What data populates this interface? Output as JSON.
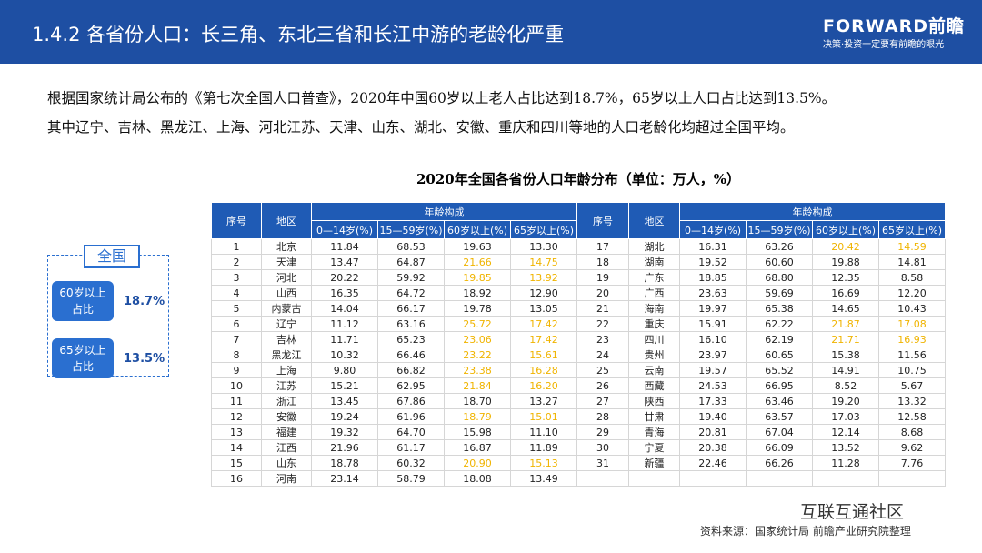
{
  "header": {
    "title": "1.4.2 各省份人口：长三角、东北三省和长江中游的老龄化严重",
    "brand": "FORWARD前瞻",
    "tagline": "决策·投资一定要有前瞻的眼光"
  },
  "intro": [
    "根据国家统计局公布的《第七次全国人口普查》，2020年中国60岁以上老人占比达到18.7%，65岁以上人口占比达到13.5%。",
    "其中辽宁、吉林、黑龙江、上海、河北江苏、天津、山东、湖北、安徽、重庆和四川等地的人口老龄化均超过全国平均。"
  ],
  "summary": {
    "title": "全国",
    "items": [
      {
        "label": "60岁以上占比",
        "value": "18.7%"
      },
      {
        "label": "65岁以上占比",
        "value": "13.5%"
      }
    ]
  },
  "table": {
    "title": "2020年全国各省份人口年龄分布（单位：万人，%）",
    "highlight_color": "#f0b400",
    "headers": {
      "no": "序号",
      "region": "地区",
      "group": "年龄构成",
      "columns": [
        "0—14岁(%)",
        "15—59岁(%)",
        "60岁以上(%)",
        "65岁以上(%)"
      ]
    },
    "rows": [
      {
        "no": 1,
        "region": "北京",
        "values": [
          "11.84",
          "68.53",
          "19.63",
          "13.30"
        ],
        "highlight": false
      },
      {
        "no": 2,
        "region": "天津",
        "values": [
          "13.47",
          "64.87",
          "21.66",
          "14.75"
        ],
        "highlight": true
      },
      {
        "no": 3,
        "region": "河北",
        "values": [
          "20.22",
          "59.92",
          "19.85",
          "13.92"
        ],
        "highlight": true
      },
      {
        "no": 4,
        "region": "山西",
        "values": [
          "16.35",
          "64.72",
          "18.92",
          "12.90"
        ],
        "highlight": false
      },
      {
        "no": 5,
        "region": "内蒙古",
        "values": [
          "14.04",
          "66.17",
          "19.78",
          "13.05"
        ],
        "highlight": false
      },
      {
        "no": 6,
        "region": "辽宁",
        "values": [
          "11.12",
          "63.16",
          "25.72",
          "17.42"
        ],
        "highlight": true
      },
      {
        "no": 7,
        "region": "吉林",
        "values": [
          "11.71",
          "65.23",
          "23.06",
          "17.42"
        ],
        "highlight": true
      },
      {
        "no": 8,
        "region": "黑龙江",
        "values": [
          "10.32",
          "66.46",
          "23.22",
          "15.61"
        ],
        "highlight": true
      },
      {
        "no": 9,
        "region": "上海",
        "values": [
          "9.80",
          "66.82",
          "23.38",
          "16.28"
        ],
        "highlight": true
      },
      {
        "no": 10,
        "region": "江苏",
        "values": [
          "15.21",
          "62.95",
          "21.84",
          "16.20"
        ],
        "highlight": true
      },
      {
        "no": 11,
        "region": "浙江",
        "values": [
          "13.45",
          "67.86",
          "18.70",
          "13.27"
        ],
        "highlight": false
      },
      {
        "no": 12,
        "region": "安徽",
        "values": [
          "19.24",
          "61.96",
          "18.79",
          "15.01"
        ],
        "highlight": true
      },
      {
        "no": 13,
        "region": "福建",
        "values": [
          "19.32",
          "64.70",
          "15.98",
          "11.10"
        ],
        "highlight": false
      },
      {
        "no": 14,
        "region": "江西",
        "values": [
          "21.96",
          "61.17",
          "16.87",
          "11.89"
        ],
        "highlight": false
      },
      {
        "no": 15,
        "region": "山东",
        "values": [
          "18.78",
          "60.32",
          "20.90",
          "15.13"
        ],
        "highlight": true
      },
      {
        "no": 16,
        "region": "河南",
        "values": [
          "23.14",
          "58.79",
          "18.08",
          "13.49"
        ],
        "highlight": false
      },
      {
        "no": 17,
        "region": "湖北",
        "values": [
          "16.31",
          "63.26",
          "20.42",
          "14.59"
        ],
        "highlight": true
      },
      {
        "no": 18,
        "region": "湖南",
        "values": [
          "19.52",
          "60.60",
          "19.88",
          "14.81"
        ],
        "highlight": false
      },
      {
        "no": 19,
        "region": "广东",
        "values": [
          "18.85",
          "68.80",
          "12.35",
          "8.58"
        ],
        "highlight": false
      },
      {
        "no": 20,
        "region": "广西",
        "values": [
          "23.63",
          "59.69",
          "16.69",
          "12.20"
        ],
        "highlight": false
      },
      {
        "no": 21,
        "region": "海南",
        "values": [
          "19.97",
          "65.38",
          "14.65",
          "10.43"
        ],
        "highlight": false
      },
      {
        "no": 22,
        "region": "重庆",
        "values": [
          "15.91",
          "62.22",
          "21.87",
          "17.08"
        ],
        "highlight": true
      },
      {
        "no": 23,
        "region": "四川",
        "values": [
          "16.10",
          "62.19",
          "21.71",
          "16.93"
        ],
        "highlight": true
      },
      {
        "no": 24,
        "region": "贵州",
        "values": [
          "23.97",
          "60.65",
          "15.38",
          "11.56"
        ],
        "highlight": false
      },
      {
        "no": 25,
        "region": "云南",
        "values": [
          "19.57",
          "65.52",
          "14.91",
          "10.75"
        ],
        "highlight": false
      },
      {
        "no": 26,
        "region": "西藏",
        "values": [
          "24.53",
          "66.95",
          "8.52",
          "5.67"
        ],
        "highlight": false
      },
      {
        "no": 27,
        "region": "陕西",
        "values": [
          "17.33",
          "63.46",
          "19.20",
          "13.32"
        ],
        "highlight": false
      },
      {
        "no": 28,
        "region": "甘肃",
        "values": [
          "19.40",
          "63.57",
          "17.03",
          "12.58"
        ],
        "highlight": false
      },
      {
        "no": 29,
        "region": "青海",
        "values": [
          "20.81",
          "67.04",
          "12.14",
          "8.68"
        ],
        "highlight": false
      },
      {
        "no": 30,
        "region": "宁夏",
        "values": [
          "20.38",
          "66.09",
          "13.52",
          "9.62"
        ],
        "highlight": false
      },
      {
        "no": 31,
        "region": "新疆",
        "values": [
          "22.46",
          "66.26",
          "11.28",
          "7.76"
        ],
        "highlight": false
      }
    ]
  },
  "footer": {
    "source": "资料来源：国家统计局 前瞻产业研究院整理",
    "watermark": "互联互通社区"
  }
}
